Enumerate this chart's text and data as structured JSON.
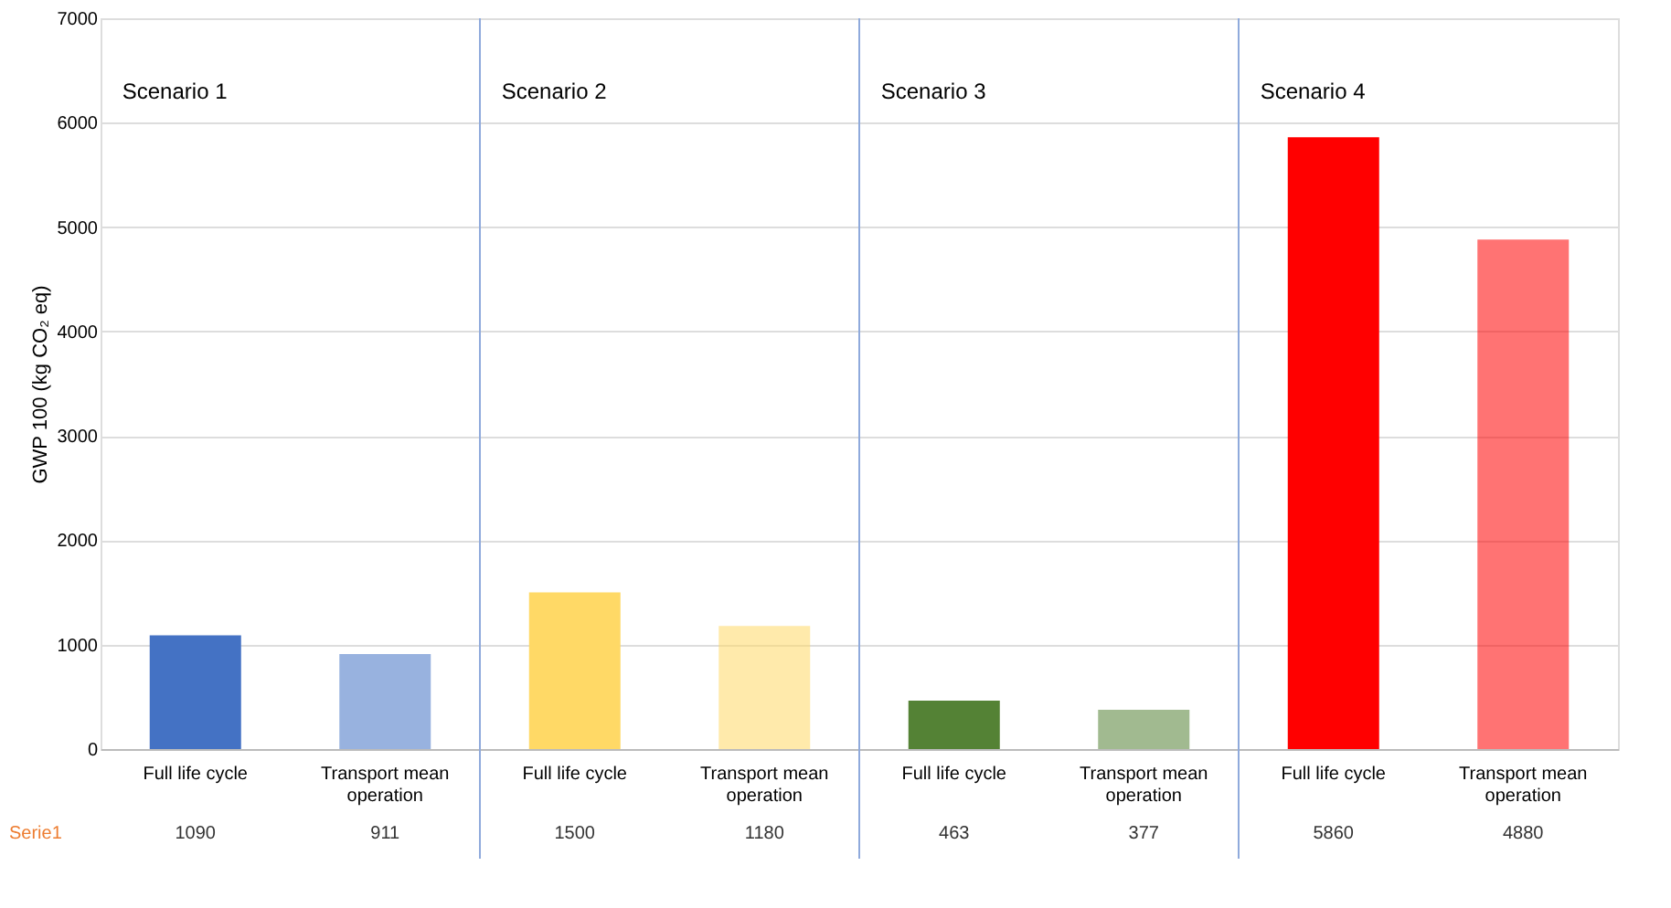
{
  "chart_data": {
    "type": "bar",
    "ylabel": "GWP 100 (kg CO₂ eq)",
    "categories": [
      "Full life cycle",
      "Transport mean operation",
      "Full life cycle",
      "Transport mean operation",
      "Full life cycle",
      "Transport mean operation",
      "Full life cycle",
      "Transport mean operation"
    ],
    "series": [
      {
        "name": "Serie1",
        "color": "#ed7d31",
        "values": [
          1090,
          911,
          1500,
          1180,
          463,
          377,
          5860,
          4880
        ],
        "colors": [
          "#4472c4",
          "#4472c4",
          "#ffd966",
          "#ffd966",
          "#548235",
          "#548235",
          "#ff0000",
          "#ff0000"
        ]
      }
    ],
    "ylim": [
      0,
      7000
    ],
    "yticks": [
      0,
      1000,
      2000,
      3000,
      4000,
      5000,
      6000,
      7000
    ],
    "grid": "y",
    "data_labels": true,
    "legend": "bottom",
    "annotations": [
      "Scenario 1",
      "Scenario 2",
      "Scenario 3",
      "Scenario 4"
    ]
  }
}
